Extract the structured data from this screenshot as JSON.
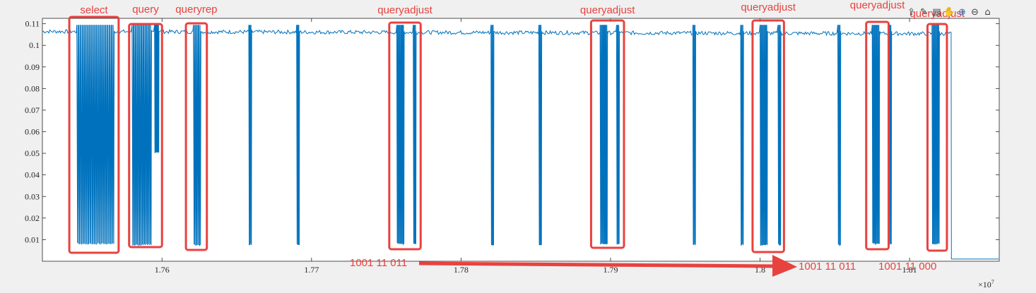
{
  "chart_data": {
    "type": "line",
    "title": "",
    "xlabel": "",
    "ylabel": "",
    "x_exponent_label": "×10",
    "x_exponent_power": "7",
    "xlim": [
      17.52,
      18.16
    ],
    "ylim": [
      0,
      0.1125
    ],
    "x_ticks": [
      17.6,
      17.7,
      17.8,
      17.9,
      18.0,
      18.1
    ],
    "x_tick_labels": [
      "1.76",
      "1.77",
      "1.78",
      "1.79",
      "1.8",
      "1.81"
    ],
    "y_ticks": [
      0.01,
      0.02,
      0.03,
      0.04,
      0.05,
      0.06,
      0.07,
      0.08,
      0.09,
      0.1,
      0.11
    ],
    "y_tick_labels": [
      "0.01",
      "0.02",
      "0.03",
      "0.04",
      "0.05",
      "0.06",
      "0.07",
      "0.08",
      "0.09",
      "0.1",
      "0.11"
    ],
    "series": [
      {
        "color": "#0072bd",
        "baseline": 0.1065,
        "signal_end_x": 18.128,
        "bursts": [
          {
            "x0": 17.543,
            "x1": 17.568,
            "min": 0.0075,
            "count": 18
          },
          {
            "x0": 17.58,
            "x1": 17.593,
            "min": 0.007,
            "count": 10
          },
          {
            "x0": 17.595,
            "x1": 17.598,
            "min": 0.05,
            "count": 4
          },
          {
            "x0": 17.621,
            "x1": 17.626,
            "min": 0.007,
            "count": 4
          },
          {
            "x0": 17.658,
            "x1": 17.66,
            "min": 0.007,
            "count": 2
          },
          {
            "x0": 17.69,
            "x1": 17.692,
            "min": 0.007,
            "count": 2
          },
          {
            "x0": 17.757,
            "x1": 17.762,
            "min": 0.0075,
            "count": 5
          },
          {
            "x0": 17.768,
            "x1": 17.77,
            "min": 0.0075,
            "count": 2
          },
          {
            "x0": 17.82,
            "x1": 17.822,
            "min": 0.007,
            "count": 2
          },
          {
            "x0": 17.852,
            "x1": 17.854,
            "min": 0.007,
            "count": 2
          },
          {
            "x0": 17.893,
            "x1": 17.898,
            "min": 0.0075,
            "count": 5
          },
          {
            "x0": 17.904,
            "x1": 17.906,
            "min": 0.0075,
            "count": 2
          },
          {
            "x0": 17.955,
            "x1": 17.957,
            "min": 0.007,
            "count": 2
          },
          {
            "x0": 17.987,
            "x1": 17.989,
            "min": 0.007,
            "count": 2
          },
          {
            "x0": 18.0,
            "x1": 18.005,
            "min": 0.007,
            "count": 5
          },
          {
            "x0": 18.012,
            "x1": 18.014,
            "min": 0.007,
            "count": 2
          },
          {
            "x0": 18.052,
            "x1": 18.054,
            "min": 0.007,
            "count": 2
          },
          {
            "x0": 18.075,
            "x1": 18.08,
            "min": 0.0075,
            "count": 5
          },
          {
            "x0": 18.086,
            "x1": 18.088,
            "min": 0.0075,
            "count": 2
          },
          {
            "x0": 18.115,
            "x1": 18.12,
            "min": 0.0075,
            "count": 5
          }
        ]
      }
    ]
  },
  "annotations": {
    "boxes": [
      {
        "label": "select",
        "x0": 17.538,
        "x1": 17.571
      },
      {
        "label": "query",
        "x0": 17.578,
        "x1": 17.6
      },
      {
        "label": "queryrep",
        "x0": 17.616,
        "x1": 17.63
      },
      {
        "label": "queryadjust",
        "x0": 17.752,
        "x1": 17.773
      },
      {
        "label": "queryadjust",
        "x0": 17.887,
        "x1": 17.909
      },
      {
        "label": "queryadjust",
        "x0": 17.995,
        "x1": 18.016
      },
      {
        "label": "queryadjust",
        "x0": 18.071,
        "x1": 18.086
      },
      {
        "label": "queryadjust",
        "x0": 18.112,
        "x1": 18.125
      }
    ],
    "bit_labels": [
      "1001 11 011",
      "1001 11 011",
      "1001 11 000"
    ],
    "arrow_color": "#e8423f"
  },
  "toolbar": {
    "buttons": [
      "export-icon",
      "brush-icon",
      "datatip-icon",
      "pan-icon",
      "zoom-in-icon",
      "zoom-out-icon",
      "home-icon"
    ]
  }
}
